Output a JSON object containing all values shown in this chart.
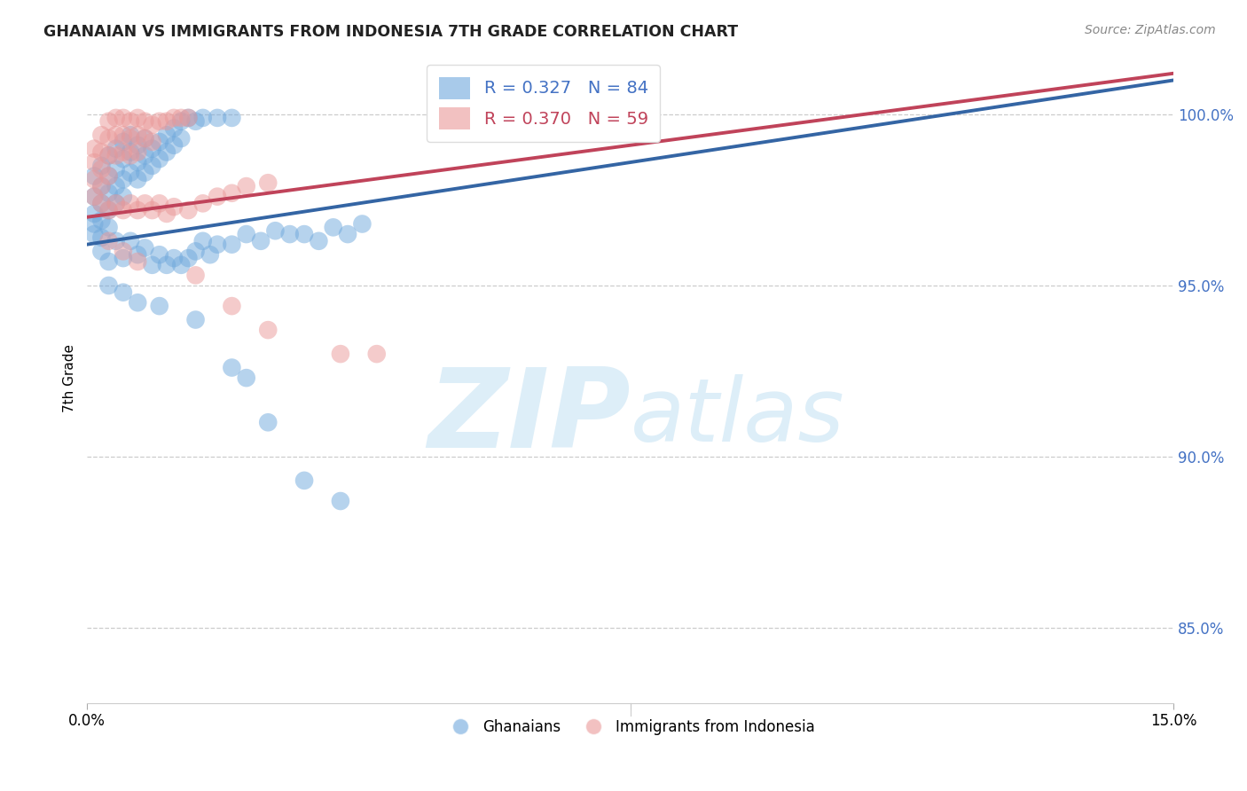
{
  "title": "GHANAIAN VS IMMIGRANTS FROM INDONESIA 7TH GRADE CORRELATION CHART",
  "source": "Source: ZipAtlas.com",
  "ylabel": "7th Grade",
  "ytick_labels": [
    "85.0%",
    "90.0%",
    "95.0%",
    "100.0%"
  ],
  "ytick_values": [
    0.85,
    0.9,
    0.95,
    1.0
  ],
  "xlim": [
    0.0,
    0.15
  ],
  "ylim": [
    0.828,
    1.018
  ],
  "legend_blue_label": "R = 0.327   N = 84",
  "legend_pink_label": "R = 0.370   N = 59",
  "blue_color": "#6fa8dc",
  "pink_color": "#ea9999",
  "blue_line_color": "#3465a4",
  "pink_line_color": "#c0435a",
  "watermark_zip": "ZIP",
  "watermark_atlas": "atlas",
  "watermark_color": "#ddeef8",
  "blue_scatter": [
    [
      0.001,
      0.982
    ],
    [
      0.001,
      0.976
    ],
    [
      0.001,
      0.971
    ],
    [
      0.001,
      0.968
    ],
    [
      0.001,
      0.965
    ],
    [
      0.002,
      0.985
    ],
    [
      0.002,
      0.979
    ],
    [
      0.002,
      0.974
    ],
    [
      0.002,
      0.969
    ],
    [
      0.002,
      0.964
    ],
    [
      0.003,
      0.988
    ],
    [
      0.003,
      0.982
    ],
    [
      0.003,
      0.977
    ],
    [
      0.003,
      0.972
    ],
    [
      0.003,
      0.967
    ],
    [
      0.004,
      0.99
    ],
    [
      0.004,
      0.984
    ],
    [
      0.004,
      0.979
    ],
    [
      0.004,
      0.974
    ],
    [
      0.005,
      0.992
    ],
    [
      0.005,
      0.987
    ],
    [
      0.005,
      0.981
    ],
    [
      0.005,
      0.976
    ],
    [
      0.006,
      0.994
    ],
    [
      0.006,
      0.989
    ],
    [
      0.006,
      0.983
    ],
    [
      0.007,
      0.991
    ],
    [
      0.007,
      0.986
    ],
    [
      0.007,
      0.981
    ],
    [
      0.008,
      0.993
    ],
    [
      0.008,
      0.988
    ],
    [
      0.008,
      0.983
    ],
    [
      0.009,
      0.99
    ],
    [
      0.009,
      0.985
    ],
    [
      0.01,
      0.992
    ],
    [
      0.01,
      0.987
    ],
    [
      0.011,
      0.994
    ],
    [
      0.011,
      0.989
    ],
    [
      0.012,
      0.996
    ],
    [
      0.012,
      0.991
    ],
    [
      0.013,
      0.998
    ],
    [
      0.013,
      0.993
    ],
    [
      0.014,
      0.999
    ],
    [
      0.015,
      0.998
    ],
    [
      0.016,
      0.999
    ],
    [
      0.018,
      0.999
    ],
    [
      0.02,
      0.999
    ],
    [
      0.002,
      0.96
    ],
    [
      0.003,
      0.957
    ],
    [
      0.004,
      0.963
    ],
    [
      0.005,
      0.958
    ],
    [
      0.006,
      0.963
    ],
    [
      0.007,
      0.959
    ],
    [
      0.008,
      0.961
    ],
    [
      0.009,
      0.956
    ],
    [
      0.01,
      0.959
    ],
    [
      0.011,
      0.956
    ],
    [
      0.012,
      0.958
    ],
    [
      0.013,
      0.956
    ],
    [
      0.014,
      0.958
    ],
    [
      0.015,
      0.96
    ],
    [
      0.016,
      0.963
    ],
    [
      0.017,
      0.959
    ],
    [
      0.018,
      0.962
    ],
    [
      0.02,
      0.962
    ],
    [
      0.022,
      0.965
    ],
    [
      0.024,
      0.963
    ],
    [
      0.026,
      0.966
    ],
    [
      0.028,
      0.965
    ],
    [
      0.03,
      0.965
    ],
    [
      0.032,
      0.963
    ],
    [
      0.034,
      0.967
    ],
    [
      0.036,
      0.965
    ],
    [
      0.038,
      0.968
    ],
    [
      0.003,
      0.95
    ],
    [
      0.005,
      0.948
    ],
    [
      0.007,
      0.945
    ],
    [
      0.01,
      0.944
    ],
    [
      0.015,
      0.94
    ],
    [
      0.02,
      0.926
    ],
    [
      0.022,
      0.923
    ],
    [
      0.025,
      0.91
    ],
    [
      0.03,
      0.893
    ],
    [
      0.035,
      0.887
    ]
  ],
  "pink_scatter": [
    [
      0.001,
      0.99
    ],
    [
      0.001,
      0.986
    ],
    [
      0.001,
      0.981
    ],
    [
      0.002,
      0.994
    ],
    [
      0.002,
      0.989
    ],
    [
      0.002,
      0.984
    ],
    [
      0.002,
      0.979
    ],
    [
      0.003,
      0.998
    ],
    [
      0.003,
      0.993
    ],
    [
      0.003,
      0.988
    ],
    [
      0.003,
      0.982
    ],
    [
      0.004,
      0.999
    ],
    [
      0.004,
      0.994
    ],
    [
      0.004,
      0.988
    ],
    [
      0.005,
      0.999
    ],
    [
      0.005,
      0.994
    ],
    [
      0.005,
      0.989
    ],
    [
      0.006,
      0.998
    ],
    [
      0.006,
      0.993
    ],
    [
      0.006,
      0.988
    ],
    [
      0.007,
      0.999
    ],
    [
      0.007,
      0.994
    ],
    [
      0.007,
      0.989
    ],
    [
      0.008,
      0.998
    ],
    [
      0.008,
      0.993
    ],
    [
      0.009,
      0.997
    ],
    [
      0.009,
      0.992
    ],
    [
      0.01,
      0.998
    ],
    [
      0.011,
      0.998
    ],
    [
      0.012,
      0.999
    ],
    [
      0.013,
      0.999
    ],
    [
      0.014,
      0.999
    ],
    [
      0.001,
      0.976
    ],
    [
      0.002,
      0.974
    ],
    [
      0.003,
      0.972
    ],
    [
      0.004,
      0.974
    ],
    [
      0.005,
      0.972
    ],
    [
      0.006,
      0.974
    ],
    [
      0.007,
      0.972
    ],
    [
      0.008,
      0.974
    ],
    [
      0.009,
      0.972
    ],
    [
      0.01,
      0.974
    ],
    [
      0.011,
      0.971
    ],
    [
      0.012,
      0.973
    ],
    [
      0.014,
      0.972
    ],
    [
      0.016,
      0.974
    ],
    [
      0.018,
      0.976
    ],
    [
      0.02,
      0.977
    ],
    [
      0.022,
      0.979
    ],
    [
      0.025,
      0.98
    ],
    [
      0.003,
      0.963
    ],
    [
      0.005,
      0.96
    ],
    [
      0.007,
      0.957
    ],
    [
      0.015,
      0.953
    ],
    [
      0.02,
      0.944
    ],
    [
      0.025,
      0.937
    ],
    [
      0.035,
      0.93
    ],
    [
      0.04,
      0.93
    ],
    [
      0.06,
      1.001
    ]
  ],
  "blue_line": {
    "x0": 0.0,
    "y0": 0.962,
    "x1": 0.15,
    "y1": 1.01
  },
  "pink_line": {
    "x0": 0.0,
    "y0": 0.97,
    "x1": 0.15,
    "y1": 1.012
  },
  "background_color": "#ffffff",
  "grid_color": "#cccccc"
}
